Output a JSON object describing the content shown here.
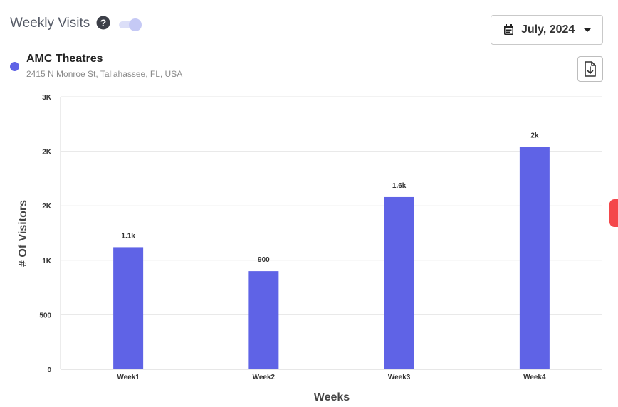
{
  "header": {
    "title": "Weekly Visits",
    "help_icon": "question-circle-icon",
    "toggle_state": "on"
  },
  "date_picker": {
    "label": "July, 2024",
    "icon": "calendar-icon"
  },
  "venue": {
    "name": "AMC Theatres",
    "address": "2415 N Monroe St, Tallahassee, FL, USA",
    "dot_color": "#5f63e6"
  },
  "download": {
    "icon": "file-download-icon"
  },
  "colors": {
    "bar": "#5f63e6",
    "side_tab": "#f4474b"
  },
  "chart_data": {
    "type": "bar",
    "categories": [
      "Week1",
      "Week2",
      "Week3",
      "Week4"
    ],
    "values": [
      1120,
      900,
      1580,
      2040
    ],
    "data_labels": [
      "1.1k",
      "900",
      "1.6k",
      "2k"
    ],
    "xlabel": "Weeks",
    "ylabel": "# Of Visitors",
    "ylim": [
      0,
      2500
    ],
    "yticks": [
      0,
      500,
      1000,
      1500,
      2000,
      2500
    ],
    "ytick_labels": [
      "0",
      "500",
      "1K",
      "2K",
      "2K",
      "3K"
    ],
    "grid": true
  }
}
